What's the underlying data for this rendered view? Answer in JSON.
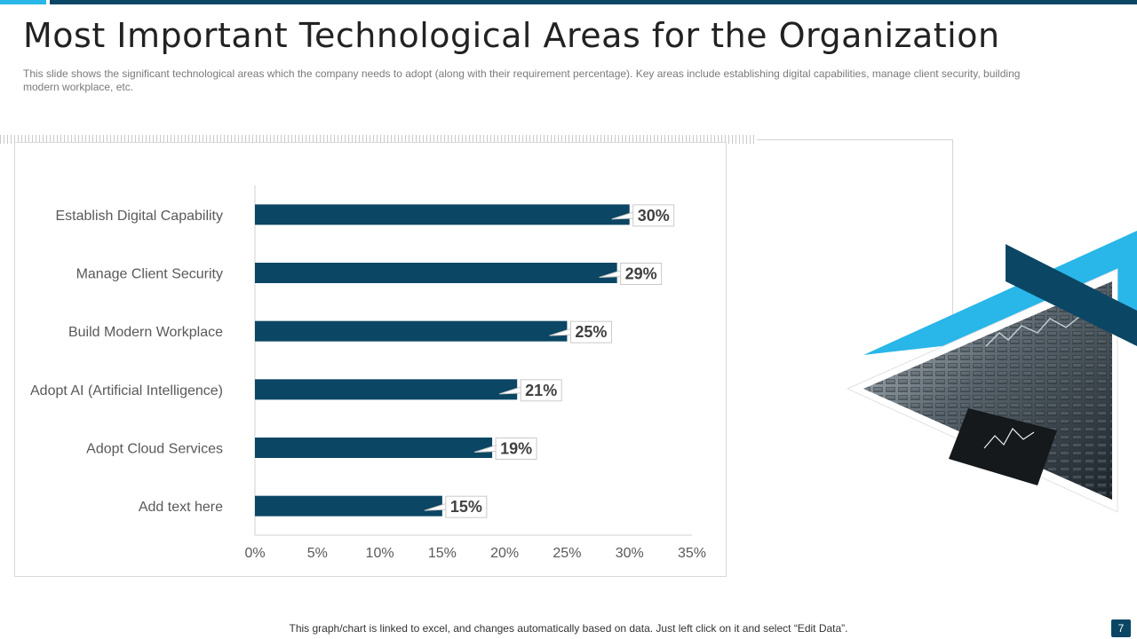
{
  "slide": {
    "title": "Most Important Technological Areas for the Organization",
    "subtitle": "This slide shows the significant technological areas which the company needs to adopt (along with their requirement percentage). Key areas include establishing digital capabilities, manage client security, building modern workplace, etc.",
    "footer_note": "This graph/chart is linked to excel,  and changes automatically based on data. Just left click on it and select “Edit Data”.",
    "page_number": "7"
  },
  "colors": {
    "bar": "#0b4664",
    "accent": "#29b6e8",
    "axis_text": "#595959",
    "label_text": "#404040"
  },
  "chart_data": {
    "type": "bar",
    "orientation": "horizontal",
    "title": "",
    "xlabel": "",
    "ylabel": "",
    "categories": [
      "Establish Digital Capability",
      "Manage Client Security",
      "Build Modern Workplace",
      "Adopt AI (Artificial Intelligence)",
      "Adopt Cloud Services",
      "Add text here"
    ],
    "values": [
      30,
      29,
      25,
      21,
      19,
      15
    ],
    "data_labels": [
      "30%",
      "29%",
      "25%",
      "21%",
      "19%",
      "15%"
    ],
    "xlim": [
      0,
      35
    ],
    "xticks": [
      0,
      5,
      10,
      15,
      20,
      25,
      30,
      35
    ],
    "xtick_labels": [
      "0%",
      "5%",
      "10%",
      "15%",
      "20%",
      "25%",
      "30%",
      "35%"
    ],
    "grid": false,
    "legend": "none"
  }
}
